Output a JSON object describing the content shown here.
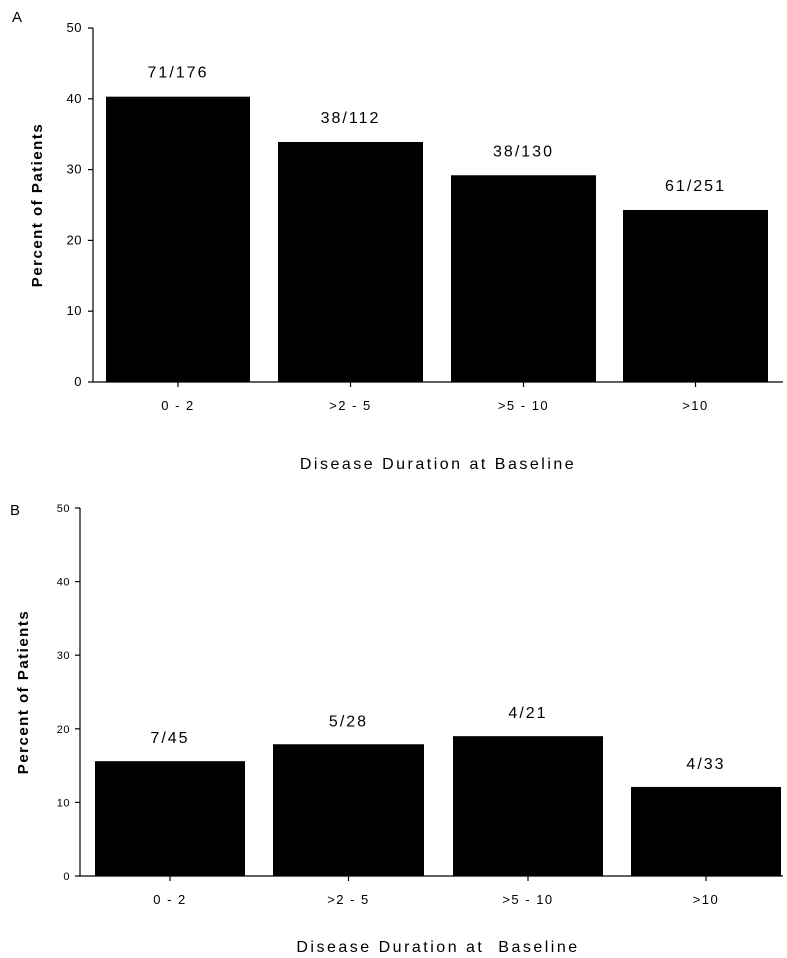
{
  "chart_data": [
    {
      "panel": "A",
      "type": "bar",
      "xlabel": "Disease Duration at Baseline",
      "ylabel": "Percent of Patients",
      "ylim": [
        0,
        50
      ],
      "yticks": [
        0,
        10,
        20,
        30,
        40,
        50
      ],
      "categories": [
        "0 - 2",
        ">2 - 5",
        ">5 - 10",
        ">10"
      ],
      "values": [
        40.3,
        33.9,
        29.2,
        24.3
      ],
      "bar_labels": [
        "71/176",
        "38/112",
        "38/130",
        "61/251"
      ],
      "bar_color": "#000000",
      "grid": false
    },
    {
      "panel": "B",
      "type": "bar",
      "xlabel": "Disease Duration at  Baseline",
      "ylabel": "Percent of Patients",
      "ylim": [
        0,
        50
      ],
      "yticks": [
        0,
        10,
        20,
        30,
        40,
        50
      ],
      "categories": [
        "0 - 2",
        ">2 - 5",
        ">5 - 10",
        ">10"
      ],
      "values": [
        15.6,
        17.9,
        19.0,
        12.1
      ],
      "bar_labels": [
        "7/45",
        "5/28",
        "4/21",
        "4/33"
      ],
      "bar_color": "#000000",
      "grid": false
    }
  ]
}
